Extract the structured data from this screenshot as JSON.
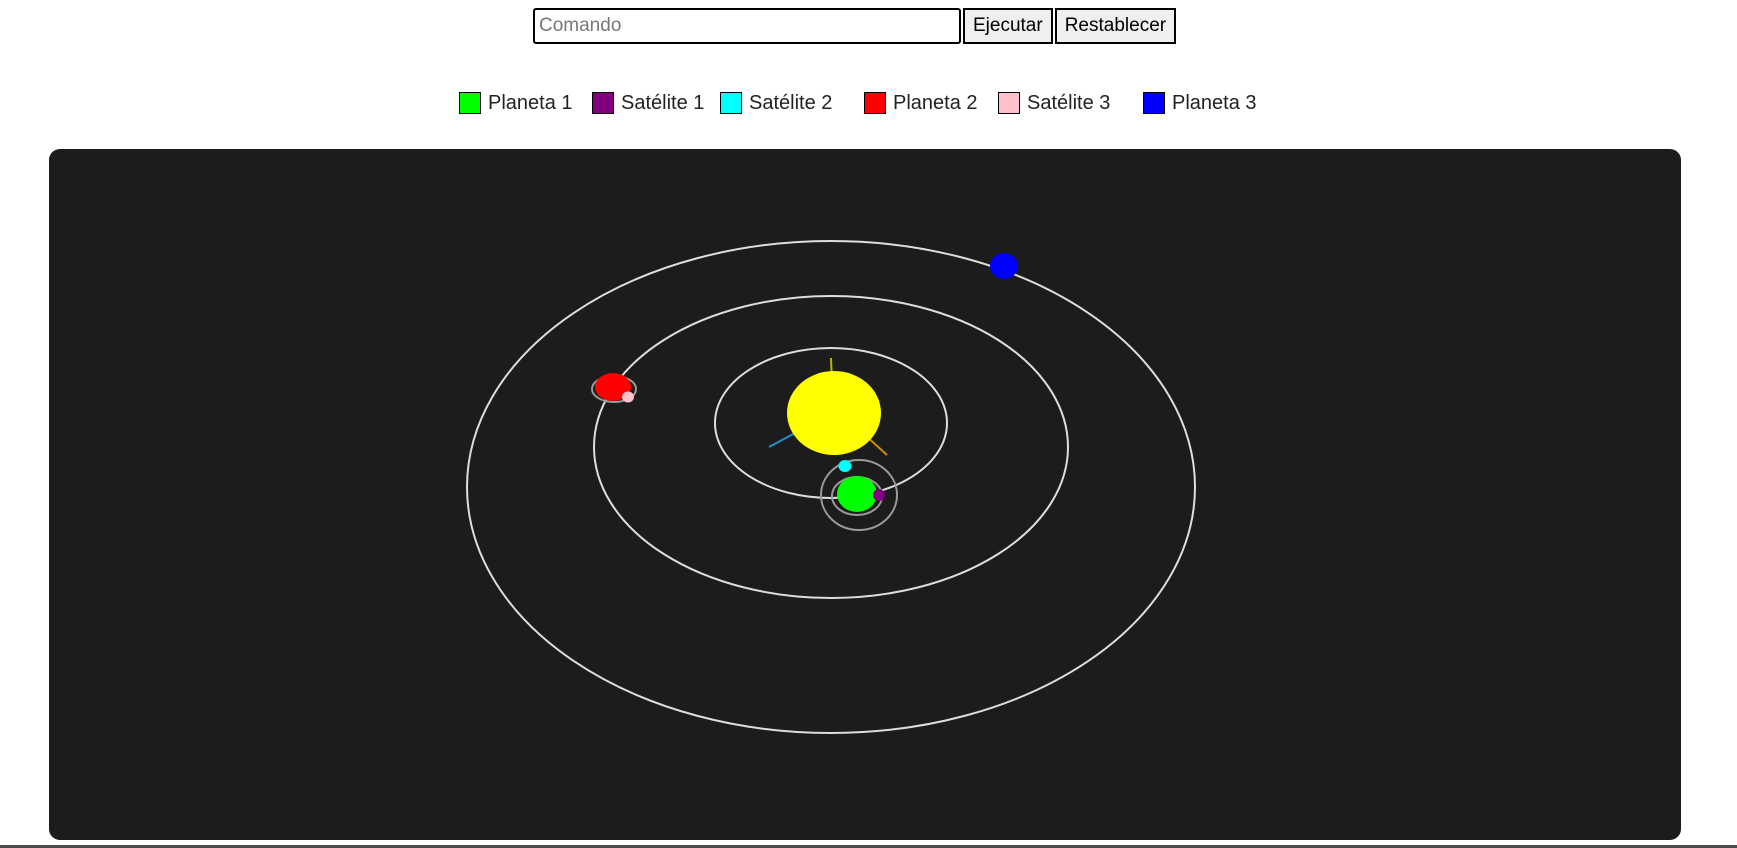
{
  "command": {
    "placeholder": "Comando",
    "value": "",
    "run_label": "Ejecutar",
    "reset_label": "Restablecer"
  },
  "legend": [
    {
      "label": "Planeta 1",
      "color": "#00ff00"
    },
    {
      "label": "Satélite 1",
      "color": "#800080"
    },
    {
      "label": "Satélite 2",
      "color": "#00ffff"
    },
    {
      "label": "Planeta 2",
      "color": "#ff0000"
    },
    {
      "label": "Satélite 3",
      "color": "#ffc0cb"
    },
    {
      "label": "Planeta 3",
      "color": "#0000ff"
    }
  ],
  "scene": {
    "background": "#1c1c1c",
    "orbit_color": "#dddddd",
    "sun_color": "#ffff00"
  }
}
